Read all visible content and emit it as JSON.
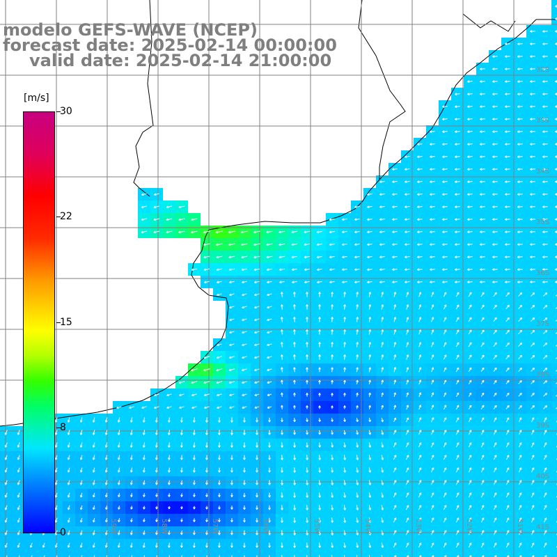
{
  "header": {
    "line1": "modelo GEFS-WAVE (NCEP)",
    "line2": "forecast date: 2025-02-14 00:00:00",
    "line3": "valid date: 2025-02-14 21:00:00"
  },
  "colorbar": {
    "unit": "[m/s]",
    "ticks": [
      "30",
      "22",
      "15",
      "8",
      "0"
    ],
    "tick_values": [
      30,
      22,
      15,
      8,
      0
    ],
    "range": [
      0,
      30
    ],
    "colors": [
      "#0000ff",
      "#0087ff",
      "#00e6ff",
      "#00ff66",
      "#b2ff00",
      "#ffff00",
      "#ff9900",
      "#ff0000",
      "#c80080"
    ]
  },
  "map": {
    "lon_labels": [
      "59W",
      "58W",
      "57W",
      "56W",
      "55W",
      "54W",
      "53W",
      "52W",
      "51W",
      "50W"
    ],
    "lat_labels": [
      "32S",
      "33S",
      "34S",
      "35S",
      "36S",
      "37S",
      "38S",
      "39S",
      "40S",
      "41S"
    ],
    "land_color": "#ffffff",
    "grid_color": "#808080",
    "arrow_color": "#ffffff",
    "field": "wind speed and direction",
    "dominant_pattern": "easterly to southeasterly flow off the coast, stronger (green, ~10-14 m/s) near the Rio de la Plata estuary, weaker (blue, ~2-6 m/s) offshore and in the south"
  }
}
